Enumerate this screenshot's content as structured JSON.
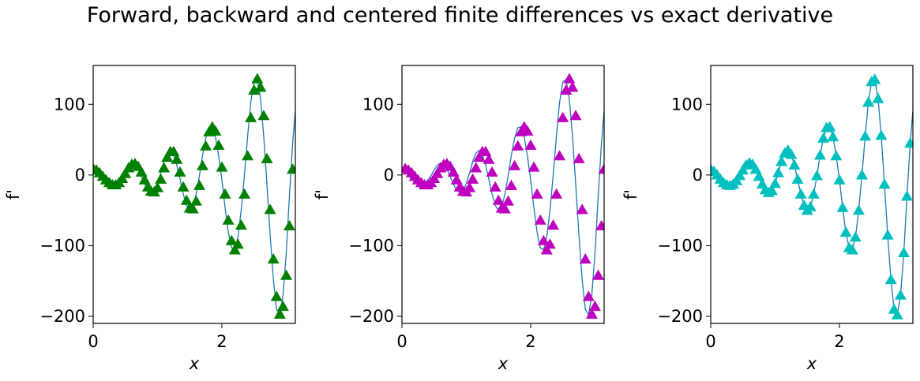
{
  "figure": {
    "title": "Forward, backward and centered finite differences vs exact derivative"
  },
  "chart_data": [
    {
      "type": "line",
      "xlabel": "x",
      "ylabel": "f'",
      "xlim": [
        0,
        3.1416
      ],
      "ylim": [
        -210,
        155
      ],
      "xticks": [
        0,
        2
      ],
      "xtick_labels": [
        "0",
        "2"
      ],
      "yticks": [
        100,
        0,
        -100,
        -200
      ],
      "ytick_labels": [
        "100",
        "0",
        "−100",
        "−200"
      ],
      "series": [
        {
          "role": "exact",
          "color": "#1f77b4",
          "marker": "none",
          "x": [
            0,
            0.05,
            0.1,
            0.15,
            0.2,
            0.25,
            0.3,
            0.35,
            0.4,
            0.45,
            0.5,
            0.55,
            0.6,
            0.65,
            0.7,
            0.75,
            0.8,
            0.85,
            0.9,
            0.95,
            1.0,
            1.05,
            1.1,
            1.15,
            1.2,
            1.25,
            1.3,
            1.35,
            1.4,
            1.45,
            1.5,
            1.55,
            1.6,
            1.65,
            1.7,
            1.75,
            1.8,
            1.85,
            1.9,
            1.95,
            2.0,
            2.05,
            2.1,
            2.15,
            2.2,
            2.25,
            2.3,
            2.35,
            2.4,
            2.45,
            2.5,
            2.55,
            2.6,
            2.65,
            2.7,
            2.75,
            2.8,
            2.85,
            2.9,
            2.95,
            3.0,
            3.05,
            3.1,
            3.14
          ],
          "y": [
            8,
            5,
            0,
            -6,
            -11,
            -14,
            -15,
            -13,
            -8,
            -1,
            7,
            14,
            17,
            15,
            8,
            -2,
            -13,
            -21,
            -25,
            -22,
            -12,
            3,
            19,
            31,
            35,
            29,
            14,
            -6,
            -27,
            -43,
            -50,
            -45,
            -27,
            -1,
            28,
            52,
            67,
            68,
            54,
            27,
            -7,
            -46,
            -81,
            -103,
            -106,
            -88,
            -50,
            0,
            55,
            103,
            132,
            135,
            108,
            56,
            -13,
            -85,
            -148,
            -190,
            -198,
            -170,
            -110,
            -30,
            45,
            90
          ]
        },
        {
          "role": "forward",
          "color": "#008000",
          "marker": "triangle",
          "x": [
            0,
            0.05,
            0.1,
            0.15,
            0.2,
            0.25,
            0.3,
            0.35,
            0.4,
            0.45,
            0.5,
            0.55,
            0.6,
            0.65,
            0.7,
            0.75,
            0.8,
            0.85,
            0.9,
            0.95,
            1.0,
            1.05,
            1.1,
            1.15,
            1.2,
            1.25,
            1.3,
            1.35,
            1.4,
            1.45,
            1.5,
            1.55,
            1.6,
            1.65,
            1.7,
            1.75,
            1.8,
            1.85,
            1.9,
            1.95,
            2.0,
            2.05,
            2.1,
            2.15,
            2.2,
            2.25,
            2.3,
            2.35,
            2.4,
            2.45,
            2.5,
            2.55,
            2.6,
            2.65,
            2.7,
            2.75,
            2.8,
            2.85,
            2.9,
            2.95,
            3.0,
            3.05,
            3.1
          ],
          "y": [
            9,
            7,
            3,
            -2,
            -7,
            -11,
            -14,
            -14,
            -11,
            -5,
            2,
            10,
            15,
            16,
            12,
            4,
            -7,
            -17,
            -23,
            -24,
            -18,
            -6,
            10,
            25,
            33,
            33,
            22,
            4,
            -17,
            -36,
            -47,
            -48,
            -37,
            -15,
            13,
            41,
            61,
            68,
            62,
            42,
            11,
            -27,
            -64,
            -93,
            -106,
            -98,
            -71,
            -27,
            27,
            81,
            120,
            136,
            124,
            84,
            23,
            -49,
            -119,
            -172,
            -197,
            -186,
            -142,
            -72,
            8
          ]
        },
        {
          "role": "backward",
          "color": "#bf00bf",
          "marker": "triangle",
          "x": [
            0.05,
            0.1,
            0.15,
            0.2,
            0.25,
            0.3,
            0.35,
            0.4,
            0.45,
            0.5,
            0.55,
            0.6,
            0.65,
            0.7,
            0.75,
            0.8,
            0.85,
            0.9,
            0.95,
            1.0,
            1.05,
            1.1,
            1.15,
            1.2,
            1.25,
            1.3,
            1.35,
            1.4,
            1.45,
            1.5,
            1.55,
            1.6,
            1.65,
            1.7,
            1.75,
            1.8,
            1.85,
            1.9,
            1.95,
            2.0,
            2.05,
            2.1,
            2.15,
            2.2,
            2.25,
            2.3,
            2.35,
            2.4,
            2.45,
            2.5,
            2.55,
            2.6,
            2.65,
            2.7,
            2.75,
            2.8,
            2.85,
            2.9,
            2.95,
            3.0,
            3.05,
            3.1,
            3.14
          ],
          "y": [
            9,
            7,
            3,
            -2,
            -7,
            -11,
            -14,
            -14,
            -11,
            -5,
            2,
            10,
            15,
            16,
            12,
            4,
            -7,
            -17,
            -23,
            -24,
            -18,
            -6,
            10,
            25,
            33,
            33,
            22,
            4,
            -17,
            -36,
            -47,
            -48,
            -37,
            -15,
            13,
            41,
            61,
            68,
            62,
            42,
            11,
            -27,
            -64,
            -93,
            -106,
            -98,
            -71,
            -27,
            27,
            81,
            120,
            136,
            124,
            84,
            23,
            -49,
            -119,
            -172,
            -197,
            -186,
            -142,
            -72,
            8
          ]
        }
      ]
    },
    {
      "type": "line",
      "xlabel": "x",
      "ylabel": "f'",
      "xlim": [
        0,
        3.1416
      ],
      "ylim": [
        -210,
        155
      ],
      "xticks": [
        0,
        2
      ],
      "xtick_labels": [
        "0",
        "2"
      ],
      "yticks": [
        100,
        0,
        -100,
        -200
      ],
      "ytick_labels": [
        "100",
        "0",
        "−100",
        "−200"
      ],
      "series": [
        {
          "role": "exact",
          "color": "#1f77b4",
          "marker": "none"
        },
        {
          "role": "backward",
          "color": "#bf00bf",
          "marker": "triangle"
        }
      ]
    },
    {
      "type": "line",
      "xlabel": "x",
      "ylabel": "f'",
      "xlim": [
        0,
        3.1416
      ],
      "ylim": [
        -210,
        155
      ],
      "xticks": [
        0,
        2
      ],
      "xtick_labels": [
        "0",
        "2"
      ],
      "yticks": [
        100,
        0,
        -100,
        -200
      ],
      "ytick_labels": [
        "100",
        "0",
        "−100",
        "−200"
      ],
      "series": [
        {
          "role": "exact",
          "color": "#1f77b4",
          "marker": "none"
        },
        {
          "role": "centered",
          "color": "#00bfbf",
          "marker": "triangle",
          "x": [
            0,
            0.05,
            0.1,
            0.15,
            0.2,
            0.25,
            0.3,
            0.35,
            0.4,
            0.45,
            0.5,
            0.55,
            0.6,
            0.65,
            0.7,
            0.75,
            0.8,
            0.85,
            0.9,
            0.95,
            1.0,
            1.05,
            1.1,
            1.15,
            1.2,
            1.25,
            1.3,
            1.35,
            1.4,
            1.45,
            1.5,
            1.55,
            1.6,
            1.65,
            1.7,
            1.75,
            1.8,
            1.85,
            1.9,
            1.95,
            2.0,
            2.05,
            2.1,
            2.15,
            2.2,
            2.25,
            2.3,
            2.35,
            2.4,
            2.45,
            2.5,
            2.55,
            2.6,
            2.65,
            2.7,
            2.75,
            2.8,
            2.85,
            2.9,
            2.95,
            3.0,
            3.05,
            3.1
          ],
          "y": [
            8,
            5,
            0,
            -6,
            -11,
            -14,
            -15,
            -13,
            -8,
            -1,
            7,
            14,
            17,
            15,
            8,
            -2,
            -13,
            -21,
            -25,
            -22,
            -12,
            3,
            19,
            31,
            35,
            29,
            14,
            -6,
            -27,
            -43,
            -50,
            -45,
            -27,
            -1,
            28,
            52,
            67,
            68,
            54,
            27,
            -7,
            -46,
            -81,
            -103,
            -106,
            -88,
            -50,
            0,
            55,
            103,
            132,
            135,
            108,
            56,
            -13,
            -85,
            -148,
            -190,
            -198,
            -170,
            -110,
            -30,
            45
          ]
        }
      ]
    }
  ]
}
